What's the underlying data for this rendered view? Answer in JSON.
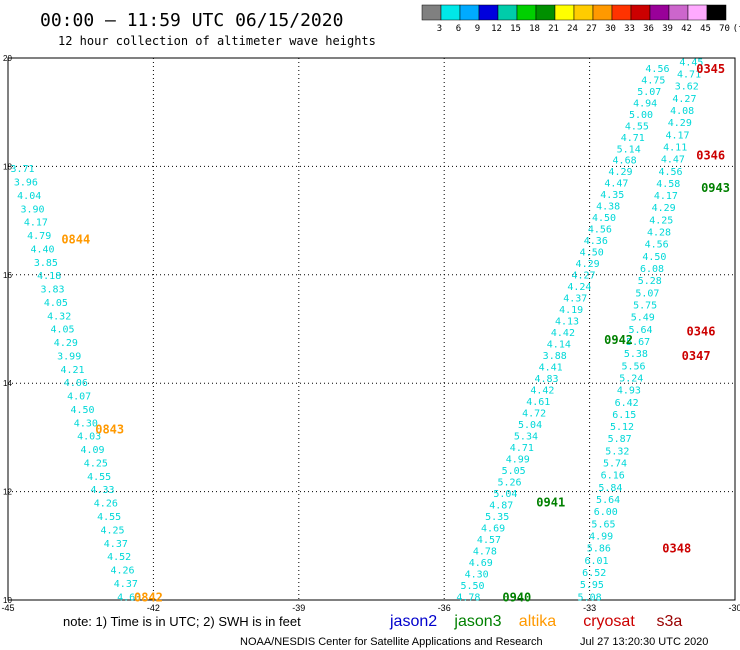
{
  "header": {
    "title": "00:00 – 11:59 UTC 06/15/2020",
    "subtitle": "12 hour collection of altimeter wave heights"
  },
  "scale": {
    "colors": [
      "#808080",
      "#00e8e8",
      "#00aaff",
      "#0000dd",
      "#00ccaa",
      "#00d000",
      "#009000",
      "#ffff00",
      "#ffcc00",
      "#ff9900",
      "#ff3300",
      "#cc0000",
      "#990099",
      "#cc66cc",
      "#ffaaff",
      "#000000"
    ],
    "labels": [
      "3",
      "6",
      "9",
      "12",
      "15",
      "18",
      "21",
      "24",
      "27",
      "30",
      "33",
      "36",
      "39",
      "42",
      "45",
      "70",
      "(ft)"
    ]
  },
  "footer": {
    "note": "note:  1) Time is in UTC; 2) SWH is in feet",
    "legend": [
      {
        "name": "jason2",
        "color": "#0000cc"
      },
      {
        "name": "jason3",
        "color": "#008000"
      },
      {
        "name": "altika",
        "color": "#ff9900"
      },
      {
        "name": "cryosat",
        "color": "#cc0000"
      },
      {
        "name": "s3a",
        "color": "#990000"
      }
    ],
    "credit": "NOAA/NESDIS Center for Satellite Applications and Research",
    "timestamp": "Jul 27 13:20:30 UTC 2020"
  },
  "chart_data": {
    "type": "scatter",
    "xlim": [
      -45,
      -30
    ],
    "ylim": [
      10,
      20
    ],
    "xticks": [
      {
        "v": -45,
        "label": "-45"
      },
      {
        "v": -42,
        "label": "-42"
      },
      {
        "v": -39,
        "label": "-39"
      },
      {
        "v": -36,
        "label": "-36"
      },
      {
        "v": -33,
        "label": "-33"
      },
      {
        "v": -30,
        "label": "-30"
      }
    ],
    "yticks": [
      {
        "v": 10,
        "label": "10"
      },
      {
        "v": 12,
        "label": "12"
      },
      {
        "v": 14,
        "label": "14"
      },
      {
        "v": 16,
        "label": "16"
      },
      {
        "v": 18,
        "label": "18"
      },
      {
        "v": 20,
        "label": "20"
      }
    ],
    "grid": true,
    "value_color": "#00d8d8",
    "tracks": [
      {
        "name": "left track",
        "x_top": -44.7,
        "y_top": 17.95,
        "x_bottom": -42.5,
        "y_bottom": 10.05,
        "values": [
          "3.71",
          "3.96",
          "4.04",
          "3.90",
          "4.17",
          "4.79",
          "4.40",
          "3.85",
          "4.18",
          "3.83",
          "4.05",
          "4.32",
          "4.05",
          "4.29",
          "3.99",
          "4.21",
          "4.06",
          "4.07",
          "4.50",
          "4.30",
          "4.03",
          "4.09",
          "4.25",
          "4.55",
          "4.33",
          "4.26",
          "4.55",
          "4.25",
          "4.37",
          "4.52",
          "4.26",
          "4.37",
          "4.63"
        ]
      },
      {
        "name": "right track A",
        "x_top": -31.6,
        "y_top": 19.8,
        "x_bottom": -35.5,
        "y_bottom": 10.05,
        "values": [
          "4.56",
          "4.75",
          "5.07",
          "4.94",
          "5.00",
          "4.55",
          "4.71",
          "5.14",
          "4.68",
          "4.29",
          "4.47",
          "4.35",
          "4.38",
          "4.50",
          "4.56",
          "4.36",
          "4.50",
          "4.29",
          "4.27",
          "4.24",
          "4.37",
          "4.19",
          "4.13",
          "4.42",
          "4.14",
          "3.88",
          "4.41",
          "4.83",
          "4.42",
          "4.61",
          "4.72",
          "5.04",
          "5.34",
          "4.71",
          "4.99",
          "5.05",
          "5.26",
          "5.04",
          "4.87",
          "5.35",
          "4.69",
          "4.57",
          "4.78",
          "4.69",
          "4.30",
          "5.50",
          "4.78"
        ]
      },
      {
        "name": "right track B",
        "x_top": -30.9,
        "y_top": 19.92,
        "x_bottom": -33.0,
        "y_bottom": 10.05,
        "values": [
          "4.45",
          "4.71",
          "3.62",
          "4.27",
          "4.08",
          "4.29",
          "4.17",
          "4.11",
          "4.47",
          "4.56",
          "4.58",
          "4.17",
          "4.29",
          "4.25",
          "4.28",
          "4.56",
          "4.50",
          "6.08",
          "5.28",
          "5.07",
          "5.75",
          "5.49",
          "5.64",
          "5.67",
          "5.38",
          "5.56",
          "5.24",
          "4.93",
          "6.42",
          "6.15",
          "5.12",
          "5.87",
          "5.32",
          "5.74",
          "6.16",
          "5.84",
          "5.64",
          "6.00",
          "5.65",
          "4.99",
          "5.86",
          "6.01",
          "6.52",
          "5.95",
          "5.08"
        ]
      }
    ],
    "time_labels": [
      {
        "text": "0345",
        "x": -30.8,
        "y": 19.8,
        "sat": "cryosat"
      },
      {
        "text": "0346",
        "x": -30.8,
        "y": 18.2,
        "sat": "cryosat"
      },
      {
        "text": "0943",
        "x": -30.7,
        "y": 17.6,
        "sat": "jason3"
      },
      {
        "text": "0844",
        "x": -43.9,
        "y": 16.65,
        "sat": "altika"
      },
      {
        "text": "0346",
        "x": -31.0,
        "y": 14.95,
        "sat": "cryosat"
      },
      {
        "text": "0942",
        "x": -32.7,
        "y": 14.8,
        "sat": "jason3"
      },
      {
        "text": "0347",
        "x": -31.1,
        "y": 14.5,
        "sat": "cryosat"
      },
      {
        "text": "0843",
        "x": -43.2,
        "y": 13.15,
        "sat": "altika"
      },
      {
        "text": "0941",
        "x": -34.1,
        "y": 11.8,
        "sat": "jason3"
      },
      {
        "text": "0348",
        "x": -31.5,
        "y": 10.95,
        "sat": "cryosat"
      },
      {
        "text": "0842",
        "x": -42.4,
        "y": 10.05,
        "sat": "altika"
      },
      {
        "text": "0940",
        "x": -34.8,
        "y": 10.05,
        "sat": "jason3"
      }
    ]
  }
}
